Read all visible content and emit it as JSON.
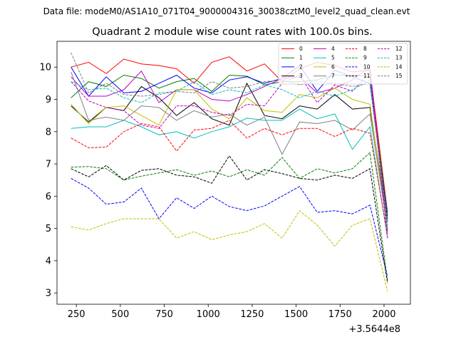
{
  "page": {
    "datafile_label": "Data file: modeM0/AS1A10_071T04_9000004316_30038cztM0_level2_quad_clean.evt"
  },
  "chart_data": {
    "type": "line",
    "title": "Quadrant 2 module wise count rates with 100.0s bins.",
    "xlabel": "",
    "ylabel": "",
    "x_offset_label": "+3.5644e8",
    "xlim": [
      140,
      2150
    ],
    "ylim": [
      2.65,
      10.8
    ],
    "xticks": [
      250,
      500,
      750,
      1000,
      1250,
      1500,
      1750,
      2000
    ],
    "yticks": [
      3,
      4,
      5,
      6,
      7,
      8,
      9,
      10
    ],
    "grid": false,
    "legend": {
      "placement": "top-right",
      "columns": 4
    },
    "x": [
      220,
      320,
      420,
      520,
      620,
      720,
      820,
      920,
      1020,
      1120,
      1220,
      1320,
      1420,
      1520,
      1620,
      1720,
      1820,
      1920,
      2020
    ],
    "series": [
      {
        "name": "0",
        "color": "#ff0000",
        "dash": "solid",
        "values": [
          10.0,
          10.15,
          9.8,
          10.25,
          10.1,
          10.05,
          9.95,
          9.5,
          10.15,
          10.32,
          9.88,
          10.1,
          9.55,
          9.95,
          10.15,
          10.05,
          9.85,
          9.9,
          5.5
        ]
      },
      {
        "name": "1",
        "color": "#008000",
        "dash": "solid",
        "values": [
          9.05,
          9.55,
          9.4,
          9.75,
          9.65,
          9.35,
          9.55,
          9.65,
          9.25,
          9.75,
          9.72,
          9.45,
          9.55,
          9.55,
          9.6,
          9.75,
          9.75,
          9.7,
          5.4
        ]
      },
      {
        "name": "2",
        "color": "#0000ff",
        "dash": "solid",
        "values": [
          10.0,
          9.1,
          9.7,
          9.2,
          9.25,
          9.5,
          9.75,
          9.35,
          9.2,
          9.6,
          9.7,
          9.5,
          9.65,
          10.05,
          9.25,
          9.9,
          9.7,
          9.5,
          5.3
        ]
      },
      {
        "name": "3",
        "color": "#000000",
        "dash": "solid",
        "values": [
          8.8,
          8.3,
          8.75,
          8.65,
          9.4,
          9.05,
          8.5,
          8.9,
          8.4,
          8.2,
          9.5,
          8.5,
          8.4,
          8.8,
          8.7,
          9.15,
          8.7,
          8.75,
          5.2
        ]
      },
      {
        "name": "4",
        "color": "#bf00bf",
        "dash": "solid",
        "values": [
          9.7,
          9.1,
          9.1,
          9.3,
          9.88,
          8.9,
          9.3,
          9.3,
          9.0,
          8.95,
          9.15,
          9.4,
          9.65,
          9.7,
          9.2,
          9.35,
          9.6,
          10.0,
          4.9
        ]
      },
      {
        "name": "5",
        "color": "#00bfbf",
        "dash": "solid",
        "values": [
          8.1,
          8.15,
          8.15,
          8.35,
          8.15,
          7.9,
          8.0,
          7.8,
          8.0,
          8.15,
          8.42,
          8.35,
          8.35,
          8.7,
          8.4,
          8.55,
          7.45,
          8.15,
          4.7
        ]
      },
      {
        "name": "6",
        "color": "#bfbf00",
        "dash": "solid",
        "values": [
          8.85,
          8.25,
          8.75,
          8.8,
          8.5,
          8.2,
          9.3,
          9.3,
          8.7,
          8.4,
          9.05,
          8.65,
          8.6,
          9.15,
          9.05,
          9.35,
          9.0,
          8.85,
          5.0
        ]
      },
      {
        "name": "7",
        "color": "#808080",
        "dash": "solid",
        "values": [
          9.85,
          8.35,
          8.45,
          8.35,
          8.8,
          8.75,
          8.35,
          8.65,
          8.45,
          8.55,
          8.2,
          8.45,
          7.3,
          8.3,
          8.25,
          8.35,
          8.05,
          8.55,
          5.0
        ]
      },
      {
        "name": "8",
        "color": "#ff0000",
        "dash": "dashed",
        "values": [
          7.8,
          7.5,
          7.52,
          8.0,
          8.25,
          8.15,
          7.4,
          8.05,
          8.1,
          8.35,
          7.8,
          8.1,
          7.9,
          8.1,
          8.1,
          7.85,
          8.1,
          7.95,
          4.8
        ]
      },
      {
        "name": "9",
        "color": "#008000",
        "dash": "dashed",
        "values": [
          6.9,
          6.92,
          6.85,
          6.5,
          6.62,
          6.72,
          6.82,
          6.65,
          6.78,
          6.6,
          6.82,
          6.65,
          7.2,
          6.55,
          6.85,
          6.72,
          6.85,
          7.35,
          3.4
        ]
      },
      {
        "name": "10",
        "color": "#0000ff",
        "dash": "dashed",
        "values": [
          6.55,
          6.25,
          5.75,
          5.82,
          6.25,
          5.3,
          5.95,
          5.62,
          6.0,
          5.68,
          5.55,
          5.7,
          6.0,
          6.3,
          5.5,
          5.55,
          5.45,
          5.72,
          3.5
        ]
      },
      {
        "name": "11",
        "color": "#000000",
        "dash": "dashed",
        "values": [
          6.85,
          6.6,
          6.95,
          6.5,
          6.8,
          6.85,
          6.65,
          6.6,
          6.4,
          7.25,
          6.5,
          6.82,
          6.7,
          6.55,
          6.5,
          6.65,
          6.55,
          6.85,
          3.3
        ]
      },
      {
        "name": "12",
        "color": "#bf00bf",
        "dash": "dashed",
        "values": [
          9.55,
          8.95,
          8.75,
          8.65,
          8.2,
          8.1,
          8.8,
          8.8,
          8.6,
          8.5,
          8.85,
          8.8,
          9.5,
          9.75,
          8.9,
          9.45,
          9.25,
          9.85,
          4.7
        ]
      },
      {
        "name": "13",
        "color": "#00bfbf",
        "dash": "dashed",
        "values": [
          9.55,
          9.3,
          9.35,
          9.05,
          8.9,
          9.2,
          9.25,
          9.55,
          9.15,
          9.3,
          9.2,
          9.45,
          9.3,
          9.05,
          9.25,
          9.1,
          9.3,
          9.6,
          5.1
        ]
      },
      {
        "name": "14",
        "color": "#bfbf00",
        "dash": "dashed",
        "values": [
          5.05,
          4.95,
          5.15,
          5.3,
          5.3,
          5.3,
          4.7,
          4.9,
          4.65,
          4.8,
          4.9,
          5.15,
          4.7,
          5.55,
          5.1,
          4.45,
          5.1,
          5.3,
          3.05
        ]
      },
      {
        "name": "15",
        "color": "#808080",
        "dash": "dashed",
        "values": [
          10.45,
          9.2,
          9.5,
          9.15,
          9.1,
          9.15,
          9.25,
          9.2,
          9.55,
          9.35,
          9.4,
          9.55,
          9.6,
          9.45,
          9.55,
          9.5,
          9.4,
          9.5,
          5.2
        ]
      }
    ]
  }
}
